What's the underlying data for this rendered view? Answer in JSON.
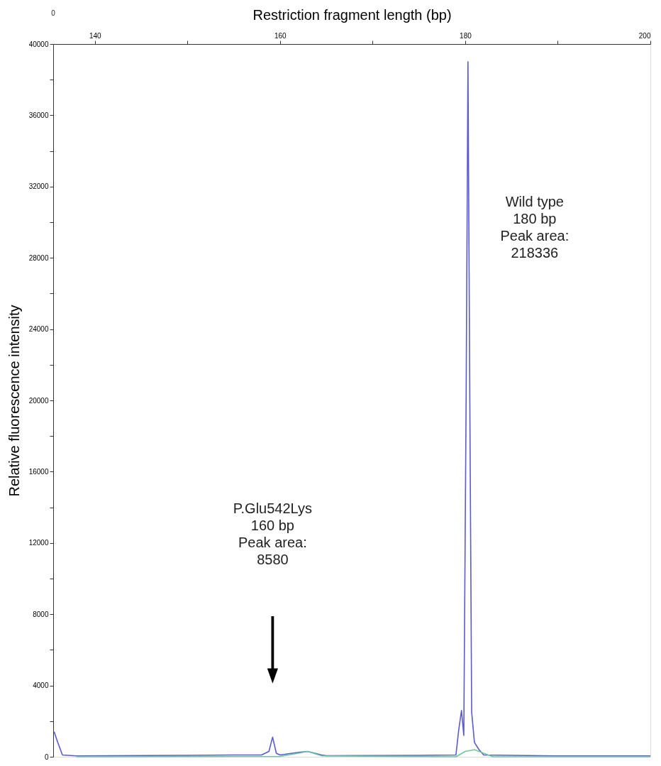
{
  "chart_data": {
    "type": "line",
    "xlabel": "Restriction fragment length (bp)",
    "ylabel": "Relative fluorescence intensity",
    "xlim": [
      135.5,
      200
    ],
    "xticks": [
      140,
      {
        "value": 150,
        "label": null
      },
      160,
      {
        "value": 170,
        "label": null
      },
      180,
      {
        "value": 190,
        "label": null
      },
      200
    ],
    "ylim": [
      0,
      40000
    ],
    "yticks": [
      0,
      {
        "value": 2000,
        "label": null
      },
      4000,
      {
        "value": 6000,
        "label": null
      },
      8000,
      {
        "value": 10000,
        "label": null
      },
      12000,
      {
        "value": 14000,
        "label": null
      },
      16000,
      {
        "value": 18000,
        "label": null
      },
      20000,
      {
        "value": 22000,
        "label": null
      },
      24000,
      {
        "value": 26000,
        "label": null
      },
      28000,
      {
        "value": 30000,
        "label": null
      },
      32000,
      {
        "value": 34000,
        "label": null
      },
      36000,
      {
        "value": 38000,
        "label": null
      },
      40000
    ],
    "grid": false,
    "series": [
      {
        "color": "#5a5ad2",
        "x": [
          135.6,
          136,
          136.5,
          138,
          150,
          155,
          158,
          158.8,
          159.2,
          159.6,
          160,
          162,
          163,
          164.5,
          165,
          175,
          179,
          179.3,
          179.6,
          179.85,
          180.1,
          180.3,
          180.5,
          180.7,
          181,
          181.5,
          182,
          190,
          200
        ],
        "values": [
          1400,
          800,
          100,
          50,
          80,
          100,
          100,
          300,
          1100,
          200,
          100,
          250,
          300,
          100,
          60,
          80,
          100,
          1500,
          2600,
          1200,
          20000,
          39000,
          20000,
          2500,
          800,
          400,
          100,
          50,
          50
        ]
      },
      {
        "color": "#6cc8a0",
        "x": [
          138,
          160,
          162,
          163,
          164.5,
          179,
          180,
          181,
          182,
          183,
          200
        ],
        "values": [
          0,
          20,
          200,
          300,
          50,
          0,
          300,
          400,
          200,
          0,
          0
        ]
      }
    ],
    "annotations": [
      "P.Glu542Lys\n160 bp\nPeak area:\n8580",
      "Wild type\n180 bp\nPeak area:\n218336",
      "0"
    ]
  }
}
